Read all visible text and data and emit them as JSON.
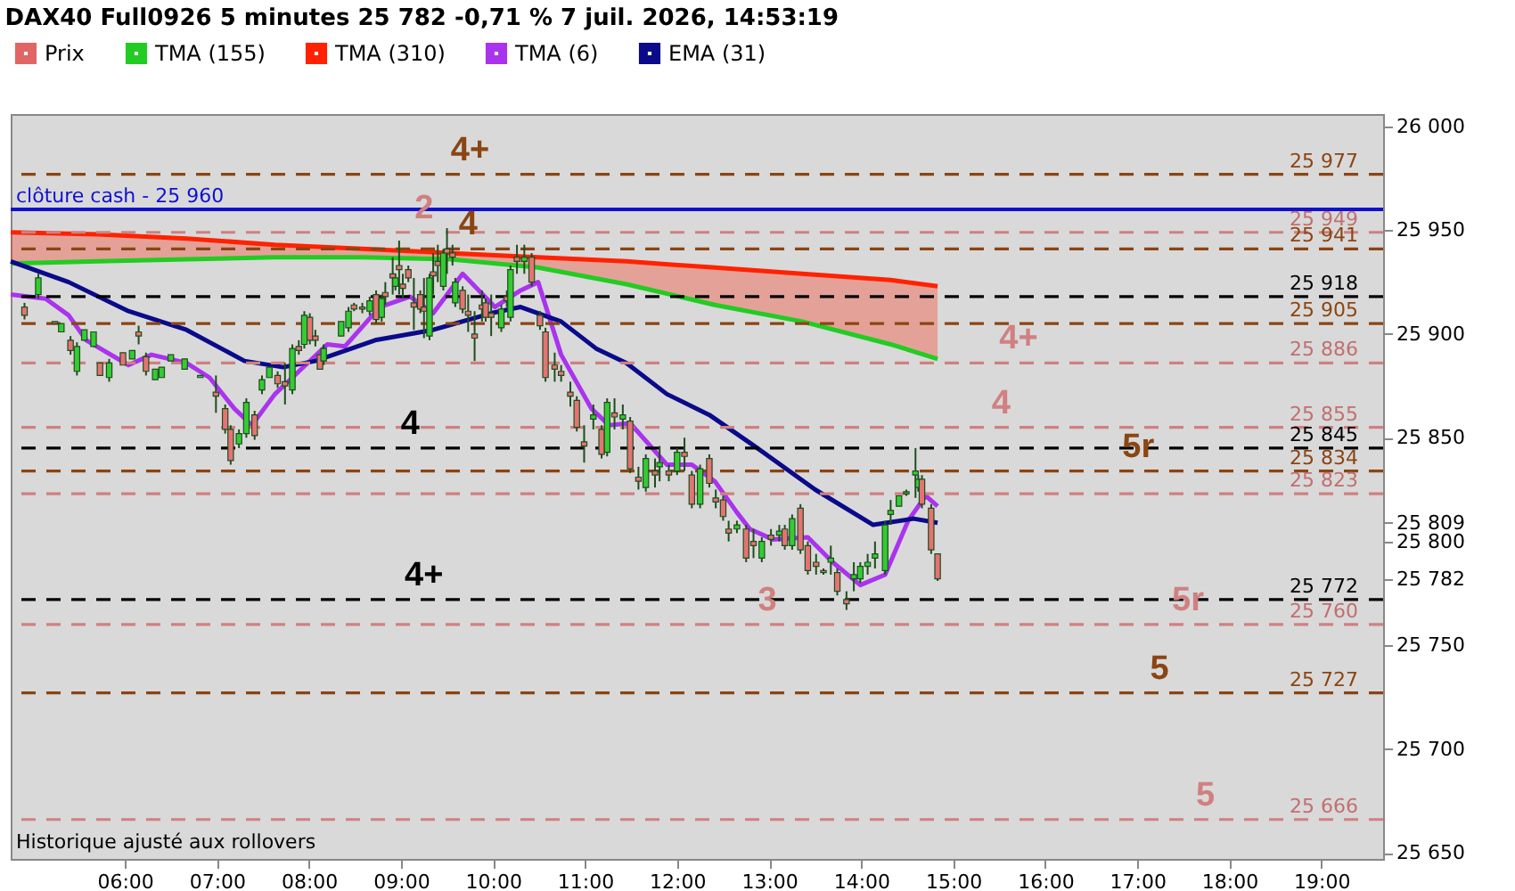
{
  "chart_data": {
    "type": "candlestick",
    "title": "DAX40 Full0926 5 minutes 25 782 -0,71 % 7 juil. 2026, 14:53:19",
    "xlim": [
      4.76,
      19.67
    ],
    "ylim": [
      25647,
      26006
    ],
    "xticks": [
      {
        "value": 6,
        "label": "06:00"
      },
      {
        "value": 7,
        "label": "07:00"
      },
      {
        "value": 8,
        "label": "08:00"
      },
      {
        "value": 9,
        "label": "09:00"
      },
      {
        "value": 10,
        "label": "10:00"
      },
      {
        "value": 11,
        "label": "11:00"
      },
      {
        "value": 12,
        "label": "12:00"
      },
      {
        "value": 13,
        "label": "13:00"
      },
      {
        "value": 14,
        "label": "14:00"
      },
      {
        "value": 15,
        "label": "15:00"
      },
      {
        "value": 16,
        "label": "16:00"
      },
      {
        "value": 17,
        "label": "17:00"
      },
      {
        "value": 18,
        "label": "18:00"
      },
      {
        "value": 19,
        "label": "19:00"
      }
    ],
    "yticks": [
      {
        "value": 25650,
        "label": "25 650"
      },
      {
        "value": 25700,
        "label": "25 700"
      },
      {
        "value": 25750,
        "label": "25 750"
      },
      {
        "value": 25782,
        "label": "25 782"
      },
      {
        "value": 25800,
        "label": "25 800"
      },
      {
        "value": 25809,
        "label": "25 809"
      },
      {
        "value": 25850,
        "label": "25 850"
      },
      {
        "value": 25900,
        "label": "25 900"
      },
      {
        "value": 25950,
        "label": "25 950"
      },
      {
        "value": 26000,
        "label": "26 000"
      }
    ],
    "grid": false,
    "legend": "top left",
    "series": [
      {
        "name": "Prix",
        "type": "candlestick",
        "color": "#e06666",
        "colors": [
          "#e57373",
          "#33cc33",
          "#e57373",
          "#33cc33",
          "#e57373",
          "#33cc33",
          "#33cc33",
          "#33cc33",
          "#e57373",
          "#33cc33",
          "#e57373",
          "#33cc33",
          "#e57373",
          "#e57373",
          "#33cc33",
          "#33cc33",
          "#33cc33",
          "#33cc33",
          "#33cc33",
          "#e57373",
          "#e57373",
          "#e57373",
          "#33cc33",
          "#33cc33",
          "#e57373",
          "#33cc33",
          "#33cc33",
          "#e57373",
          "#e57373",
          "#33cc33",
          "#e57373",
          "#33cc33",
          "#e57373",
          "#e57373",
          "#e57373",
          "#33cc33",
          "#33cc33",
          "#33cc33",
          "#e57373",
          "#e57373",
          "#33cc33",
          "#e57373",
          "#33cc33",
          "#e57373",
          "#e57373",
          "#33cc33",
          "#e57373",
          "#e57373",
          "#e57373",
          "#e57373",
          "#e57373",
          "#e57373",
          "#33cc33",
          "#e57373",
          "#e57373",
          "#33cc33",
          "#e57373",
          "#e57373",
          "#33cc33",
          "#e57373",
          "#e57373",
          "#e57373",
          "#e57373",
          "#e57373",
          "#e57373",
          "#33cc33",
          "#e57373",
          "#33cc33",
          "#e57373",
          "#33cc33",
          "#e57373",
          "#e57373",
          "#e57373",
          "#e57373",
          "#e57373",
          "#e57373",
          "#e57373",
          "#e57373",
          "#33cc33",
          "#e57373",
          "#33cc33",
          "#e57373",
          "#33cc33",
          "#e57373",
          "#e57373",
          "#33cc33",
          "#e57373",
          "#33cc33",
          "#e57373",
          "#33cc33",
          "#e57373",
          "#e57373",
          "#33cc33",
          "#e57373",
          "#e57373",
          "#e57373",
          "#e57373",
          "#33cc33",
          "#e57373",
          "#e57373",
          "#33cc33",
          "#e57373",
          "#33cc33",
          "#e57373",
          "#33cc33",
          "#e57373",
          "#e57373",
          "#e57373",
          "#e57373",
          "#33cc33",
          "#e57373",
          "#e57373",
          "#33cc33",
          "#33cc33",
          "#33cc33",
          "#33cc33",
          "#33cc33",
          "#33cc33",
          "#33cc33",
          "#33cc33",
          "#33cc33",
          "#33cc33",
          "#e57373",
          "#e57373",
          "#e57373"
        ],
        "x": [
          4.91,
          5.06,
          5.24,
          5.31,
          5.41,
          5.48,
          5.56,
          5.66,
          5.73,
          5.83,
          5.98,
          6.08,
          6.15,
          6.23,
          6.33,
          6.4,
          6.5,
          6.65,
          6.82,
          6.99,
          7.09,
          7.15,
          7.24,
          7.32,
          7.41,
          7.49,
          7.57,
          7.66,
          7.74,
          7.82,
          7.89,
          7.95,
          8.01,
          8.07,
          8.12,
          8.16,
          8.35,
          8.43,
          8.49,
          8.58,
          8.66,
          8.73,
          8.79,
          8.83,
          8.91,
          8.94,
          8.98,
          9.02,
          9.08,
          9.14,
          9.21,
          9.25,
          9.31,
          9.35,
          9.4,
          9.46,
          9.5,
          9.56,
          9.59,
          9.67,
          9.73,
          9.8,
          9.88,
          9.92,
          9.98,
          10.09,
          10.15,
          10.19,
          10.26,
          10.34,
          10.42,
          10.51,
          10.57,
          10.67,
          10.74,
          10.84,
          10.91,
          10.99,
          11.09,
          11.18,
          11.24,
          11.32,
          11.41,
          11.49,
          11.58,
          11.66,
          11.76,
          11.81,
          11.91,
          12.0,
          12.08,
          12.16,
          12.25,
          12.35,
          12.42,
          12.5,
          12.56,
          12.65,
          12.75,
          12.83,
          12.92,
          13.02,
          13.11,
          13.17,
          13.25,
          13.34,
          13.42,
          13.51,
          13.59,
          13.67,
          13.74,
          13.84,
          13.92,
          13.99,
          14.07,
          14.15,
          14.26,
          14.32,
          14.41,
          14.49,
          14.59,
          14.62,
          14.66,
          14.76,
          14.83
        ],
        "ohlc": [
          [
            25913,
            25915,
            25907,
            25909
          ],
          [
            25919,
            25929,
            25917,
            25927
          ],
          [
            25906,
            25906,
            25905,
            25905
          ],
          [
            25901,
            25905,
            25901,
            25905
          ],
          [
            25897,
            25899,
            25890,
            25892
          ],
          [
            25882,
            25896,
            25880,
            25894
          ],
          [
            25897,
            25902,
            25897,
            25902
          ],
          [
            25894,
            25901,
            25894,
            25901
          ],
          [
            25886,
            25886,
            25880,
            25880
          ],
          [
            25879,
            25888,
            25877,
            25886
          ],
          [
            25891,
            25891,
            25885,
            25885
          ],
          [
            25888,
            25892,
            25888,
            25892
          ],
          [
            25901,
            25904,
            25895,
            25899
          ],
          [
            25889,
            25891,
            25880,
            25882
          ],
          [
            25878,
            25883,
            25878,
            25883
          ],
          [
            25879,
            25884,
            25879,
            25884
          ],
          [
            25887,
            25890,
            25887,
            25890
          ],
          [
            25883,
            25888,
            25883,
            25888
          ],
          [
            25879,
            25880,
            25879,
            25880
          ],
          [
            25872,
            25880,
            25862,
            25870
          ],
          [
            25864,
            25866,
            25852,
            25854
          ],
          [
            25854,
            25856,
            25837,
            25839
          ],
          [
            25847,
            25854,
            25845,
            25852
          ],
          [
            25852,
            25869,
            25850,
            25867
          ],
          [
            25861,
            25863,
            25849,
            25851
          ],
          [
            25873,
            25880,
            25871,
            25878
          ],
          [
            25879,
            25884,
            25879,
            25884
          ],
          [
            25880,
            25882,
            25874,
            25876
          ],
          [
            25877,
            25886,
            25866,
            25875
          ],
          [
            25873,
            25895,
            25871,
            25893
          ],
          [
            25894,
            25897,
            25890,
            25892
          ],
          [
            25895,
            25911,
            25893,
            25909
          ],
          [
            25908,
            25910,
            25895,
            25897
          ],
          [
            25899,
            25902,
            25894,
            25897
          ],
          [
            25890,
            25890,
            25883,
            25883
          ],
          [
            25887,
            25895,
            25885,
            25893
          ],
          [
            25899,
            25906,
            25899,
            25906
          ],
          [
            25903,
            25913,
            25901,
            25911
          ],
          [
            25914,
            25915,
            25911,
            25912
          ],
          [
            25913,
            25915,
            25910,
            25912
          ],
          [
            25911,
            25918,
            25909,
            25916
          ],
          [
            25919,
            25921,
            25905,
            25907
          ],
          [
            25908,
            25919,
            25906,
            25917
          ],
          [
            25920,
            25925,
            25914,
            25918
          ],
          [
            25929,
            25937,
            25919,
            25927
          ],
          [
            25923,
            25929,
            25921,
            25927
          ],
          [
            25933,
            25945,
            25919,
            25931
          ],
          [
            25924,
            25929,
            25917,
            25922
          ],
          [
            25931,
            25933,
            25925,
            25927
          ],
          [
            25915,
            25927,
            25902,
            25913
          ],
          [
            25919,
            25921,
            25910,
            25912
          ],
          [
            25913,
            25927,
            25898,
            25911
          ],
          [
            25899,
            25929,
            25897,
            25927
          ],
          [
            25930,
            25939,
            25919,
            25928
          ],
          [
            25935,
            25943,
            25925,
            25933
          ],
          [
            25923,
            25941,
            25921,
            25939
          ],
          [
            25941,
            25951,
            25929,
            25939
          ],
          [
            25939,
            25943,
            25933,
            25937
          ],
          [
            25915,
            25927,
            25913,
            25925
          ],
          [
            25921,
            25923,
            25910,
            25912
          ],
          [
            25911,
            25919,
            25901,
            25909
          ],
          [
            25900,
            25911,
            25887,
            25898
          ],
          [
            25914,
            25921,
            25906,
            25912
          ],
          [
            25915,
            25917,
            25906,
            25908
          ],
          [
            25910,
            25919,
            25899,
            25908
          ],
          [
            25903,
            25914,
            25901,
            25912
          ],
          [
            25918,
            25921,
            25913,
            25916
          ],
          [
            25908,
            25933,
            25906,
            25931
          ],
          [
            25937,
            25943,
            25929,
            25935
          ],
          [
            25935,
            25943,
            25929,
            25937
          ],
          [
            25937,
            25939,
            25923,
            25925
          ],
          [
            25909,
            25911,
            25902,
            25904
          ],
          [
            25901,
            25903,
            25877,
            25879
          ],
          [
            25885,
            25891,
            25877,
            25883
          ],
          [
            25882,
            25885,
            25877,
            25880
          ],
          [
            25872,
            25877,
            25865,
            25870
          ],
          [
            25868,
            25870,
            25853,
            25855
          ],
          [
            25848,
            25856,
            25838,
            25846
          ],
          [
            25859,
            25866,
            25854,
            25861
          ],
          [
            25854,
            25856,
            25840,
            25842
          ],
          [
            25843,
            25869,
            25841,
            25867
          ],
          [
            25862,
            25869,
            25854,
            25860
          ],
          [
            25859,
            25866,
            25854,
            25861
          ],
          [
            25858,
            25860,
            25833,
            25835
          ],
          [
            25831,
            25836,
            25825,
            25829
          ],
          [
            25826,
            25842,
            25824,
            25840
          ],
          [
            25834,
            25840,
            25826,
            25832
          ],
          [
            25836,
            25846,
            25829,
            25838
          ],
          [
            25834,
            25837,
            25829,
            25832
          ],
          [
            25834,
            25845,
            25832,
            25843
          ],
          [
            25843,
            25850,
            25834,
            25841
          ],
          [
            25832,
            25834,
            25816,
            25818
          ],
          [
            25818,
            25837,
            25816,
            25835
          ],
          [
            25840,
            25842,
            25826,
            25828
          ],
          [
            25821,
            25825,
            25816,
            25819
          ],
          [
            25820,
            25822,
            25810,
            25812
          ],
          [
            25806,
            25810,
            25800,
            25804
          ],
          [
            25806,
            25810,
            25804,
            25808
          ],
          [
            25806,
            25808,
            25790,
            25792
          ],
          [
            25800,
            25806,
            25792,
            25798
          ],
          [
            25792,
            25802,
            25790,
            25800
          ],
          [
            25803,
            25806,
            25798,
            25801
          ],
          [
            25803,
            25808,
            25800,
            25805
          ],
          [
            25806,
            25808,
            25796,
            25798
          ],
          [
            25798,
            25813,
            25796,
            25811
          ],
          [
            25816,
            25818,
            25794,
            25796
          ],
          [
            25798,
            25800,
            25784,
            25786
          ],
          [
            25790,
            25794,
            25784,
            25788
          ],
          [
            25786,
            25787,
            25784,
            25785
          ],
          [
            25790,
            25798,
            25784,
            25792
          ],
          [
            25785,
            25787,
            25774,
            25776
          ],
          [
            25772,
            25776,
            25767,
            25770
          ],
          [
            25782,
            25790,
            25776,
            25784
          ],
          [
            25782,
            25790,
            25780,
            25788
          ],
          [
            25788,
            25794,
            25784,
            25790
          ],
          [
            25792,
            25800,
            25787,
            25794
          ],
          [
            25786,
            25810,
            25784,
            25808
          ],
          [
            25813,
            25820,
            25808,
            25815
          ],
          [
            25817,
            25822,
            25817,
            25822
          ],
          [
            25823,
            25825,
            25822,
            25824
          ],
          [
            25832,
            25845,
            25821,
            25834
          ],
          [
            25826,
            25832,
            25824,
            25830
          ],
          [
            25830,
            25832,
            25816,
            25818
          ],
          [
            25816,
            25818,
            25794,
            25796
          ],
          [
            25794,
            25794,
            25781,
            25782
          ]
        ]
      },
      {
        "name": "TMA (155)",
        "type": "line",
        "color": "#22cc22",
        "x": [
          4.76,
          5.71,
          6.67,
          7.63,
          8.58,
          9.54,
          10.49,
          11.45,
          12.41,
          13.36,
          14.32,
          14.83
        ],
        "values": [
          25934,
          25935,
          25936,
          25937,
          25937,
          25936,
          25932,
          25924,
          25914,
          25906,
          25895,
          25888
        ]
      },
      {
        "name": "TMA (310)",
        "type": "line",
        "color": "#ff2200",
        "x": [
          4.76,
          5.71,
          6.67,
          7.63,
          8.58,
          9.54,
          10.49,
          11.45,
          12.41,
          13.36,
          14.32,
          14.83
        ],
        "values": [
          25949,
          25948,
          25946,
          25943,
          25941,
          25939,
          25937,
          25935,
          25932,
          25929,
          25926,
          25923
        ],
        "lower": [
          25934,
          25935,
          25936,
          25937,
          25937,
          25936,
          25932,
          25924,
          25914,
          25906,
          25895,
          25888
        ],
        "upper": [
          25949,
          25948,
          25946,
          25943,
          25941,
          25939,
          25937,
          25935,
          25932,
          25929,
          25926,
          25923
        ]
      },
      {
        "name": "TMA (6)",
        "type": "line",
        "color": "#aa33ee",
        "x": [
          4.76,
          5.14,
          5.39,
          5.58,
          6.04,
          6.29,
          6.67,
          6.92,
          7.19,
          7.38,
          7.63,
          7.82,
          8.2,
          8.39,
          8.77,
          9.1,
          9.35,
          9.67,
          10.02,
          10.3,
          10.49,
          10.74,
          11.07,
          11.26,
          11.49,
          11.89,
          12.16,
          12.41,
          12.65,
          12.79,
          13.04,
          13.42,
          13.69,
          13.99,
          14.26,
          14.51,
          14.7,
          14.83
        ],
        "values": [
          25919,
          25917,
          25909,
          25897,
          25885,
          25890,
          25886,
          25879,
          25864,
          25856,
          25871,
          25879,
          25895,
          25894,
          25913,
          25918,
          25910,
          25929,
          25913,
          25921,
          25925,
          25890,
          25864,
          25856,
          25857,
          25837,
          25837,
          25829,
          25814,
          25806,
          25801,
          25802,
          25790,
          25779,
          25784,
          25810,
          25822,
          25817
        ]
      },
      {
        "name": "EMA (31)",
        "type": "line",
        "color": "#0a0a8a",
        "x": [
          4.76,
          5.39,
          6.04,
          6.67,
          7.3,
          7.72,
          8.07,
          8.72,
          9.35,
          9.98,
          10.3,
          10.74,
          11.12,
          11.45,
          11.89,
          12.35,
          12.84,
          13.5,
          14.13,
          14.57,
          14.83
        ],
        "values": [
          25935,
          25925,
          25911,
          25902,
          25887,
          25884,
          25887,
          25897,
          25902,
          25910,
          25913,
          25906,
          25893,
          25886,
          25871,
          25861,
          25846,
          25825,
          25808,
          25811,
          25809
        ]
      }
    ],
    "ref_lines": [
      {
        "axis": "y",
        "value": 25977,
        "label": "25 977",
        "color": "#8b4513",
        "line_style": "dashed"
      },
      {
        "axis": "y",
        "value": 25960,
        "label": "clôture cash -  25 960",
        "color": "#1010d0",
        "line_style": "solid"
      },
      {
        "axis": "y",
        "value": 25949,
        "label": "25 949",
        "color": "#d08080",
        "line_style": "dashed"
      },
      {
        "axis": "y",
        "value": 25941,
        "label": "25 941",
        "color": "#8b4513",
        "line_style": "dashed"
      },
      {
        "axis": "y",
        "value": 25918,
        "label": "25 918",
        "color": "#000000",
        "line_style": "dashed"
      },
      {
        "axis": "y",
        "value": 25905,
        "label": "25 905",
        "color": "#8b4513",
        "line_style": "dashed"
      },
      {
        "axis": "y",
        "value": 25886,
        "label": "25 886",
        "color": "#d08080",
        "line_style": "dashed"
      },
      {
        "axis": "y",
        "value": 25855,
        "label": "25 855",
        "color": "#d08080",
        "line_style": "dashed"
      },
      {
        "axis": "y",
        "value": 25845,
        "label": "25 845",
        "color": "#000000",
        "line_style": "dashed"
      },
      {
        "axis": "y",
        "value": 25834,
        "label": "25 834",
        "color": "#8b4513",
        "line_style": "dashed"
      },
      {
        "axis": "y",
        "value": 25823,
        "label": "25 823",
        "color": "#d08080",
        "line_style": "dashed"
      },
      {
        "axis": "y",
        "value": 25772,
        "label": "25 772",
        "color": "#000000",
        "line_style": "dashed"
      },
      {
        "axis": "y",
        "value": 25760,
        "label": "25 760",
        "color": "#d08080",
        "line_style": "dashed"
      },
      {
        "axis": "y",
        "value": 25727,
        "label": "25 727",
        "color": "#8b4513",
        "line_style": "dashed"
      },
      {
        "axis": "y",
        "value": 25666,
        "label": "25 666",
        "color": "#d08080",
        "line_style": "dashed"
      }
    ],
    "annotations": [
      {
        "text": "4+",
        "x": 9.75,
        "y": 25977
      },
      {
        "text": "2",
        "x": 9.25,
        "y": 25949
      },
      {
        "text": "4",
        "x": 9.73,
        "y": 25941
      },
      {
        "text": "4+",
        "x": 15.71,
        "y": 25886
      },
      {
        "text": "4",
        "x": 15.52,
        "y": 25855
      },
      {
        "text": "5r",
        "x": 17.01,
        "y": 25834
      },
      {
        "text": "4",
        "x": 9.1,
        "y": 25845
      },
      {
        "text": "4+",
        "x": 9.25,
        "y": 25772
      },
      {
        "text": "3",
        "x": 12.98,
        "y": 25760
      },
      {
        "text": "5r",
        "x": 17.55,
        "y": 25760
      },
      {
        "text": "5",
        "x": 17.24,
        "y": 25727
      },
      {
        "text": "5",
        "x": 17.74,
        "y": 25666
      },
      "Historique ajusté aux rollovers"
    ]
  }
}
